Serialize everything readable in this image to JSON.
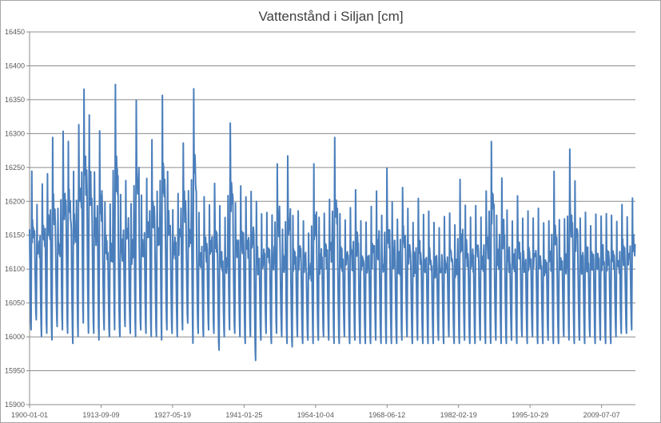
{
  "chart_data": {
    "type": "line",
    "title": "Vattenstånd i Siljan [cm]",
    "xlabel": "",
    "ylabel": "",
    "ylim": [
      15900,
      16450
    ],
    "y_ticks": [
      15900,
      15950,
      16000,
      16050,
      16100,
      16150,
      16200,
      16250,
      16300,
      16350,
      16400,
      16450
    ],
    "x_ticks": [
      "1900-01-01",
      "1913-09-09",
      "1927-05-19",
      "1941-01-25",
      "1954-10-04",
      "1968-06-12",
      "1982-02-19",
      "1995-10-29",
      "2009-07-07"
    ],
    "xlim_years": [
      1900,
      2016
    ],
    "grid": "horizontal",
    "series": [
      {
        "name": "Vattenstånd i Siljan",
        "color": "#4a7ebb",
        "annual_peaks": [
          16250,
          16200,
          16240,
          16255,
          16305,
          16200,
          16320,
          16305,
          16260,
          16325,
          16380,
          16345,
          16255,
          16315,
          16210,
          16200,
          16390,
          16215,
          16245,
          16200,
          16360,
          16220,
          16245,
          16300,
          16225,
          16375,
          16255,
          16200,
          16225,
          16300,
          16220,
          16380,
          16195,
          16215,
          16200,
          16235,
          16200,
          16180,
          16330,
          16210,
          16230,
          16220,
          16225,
          16205,
          16190,
          16195,
          16190,
          16270,
          16170,
          16280,
          16185,
          16190,
          16175,
          16155,
          16270,
          16185,
          16190,
          16210,
          16305,
          16195,
          16185,
          16200,
          16230,
          16175,
          16180,
          16200,
          16220,
          16185,
          16255,
          16205,
          16180,
          16235,
          16200,
          16175,
          16215,
          16185,
          16195,
          16175,
          16170,
          16185,
          16190,
          16175,
          16240,
          16200,
          16185,
          16200,
          16180,
          16225,
          16305,
          16185,
          16250,
          16195,
          16175,
          16215,
          16180,
          16190,
          16185,
          16200,
          16175,
          16180,
          16250,
          16180,
          16180,
          16290,
          16240,
          16180,
          16195,
          16175,
          16190,
          16190,
          16185,
          16190,
          16175,
          16200,
          16180,
          16210
        ],
        "annual_troughs": [
          16010,
          16025,
          16000,
          16005,
          15995,
          16015,
          16010,
          16005,
          15990,
          16000,
          16020,
          16005,
          16005,
          15995,
          16010,
          16000,
          16010,
          16000,
          16015,
          16005,
          16000,
          16010,
          16005,
          16000,
          16000,
          15995,
          16010,
          16005,
          16000,
          16010,
          16020,
          15990,
          16005,
          16000,
          16010,
          16005,
          15980,
          16000,
          16010,
          16005,
          16000,
          15990,
          16000,
          15965,
          15995,
          16005,
          15990,
          16005,
          16000,
          15990,
          15985,
          16000,
          15990,
          15995,
          15990,
          15995,
          16000,
          15995,
          15990,
          15990,
          16000,
          15990,
          15995,
          15990,
          15990,
          15990,
          15995,
          15990,
          15990,
          15990,
          15990,
          15995,
          16000,
          15990,
          15995,
          15990,
          15990,
          15990,
          15995,
          15990,
          16000,
          15990,
          15990,
          15995,
          15990,
          15990,
          15995,
          15990,
          15990,
          15995,
          15990,
          15990,
          15995,
          15990,
          16000,
          15990,
          16000,
          15990,
          15990,
          15995,
          15990,
          15990,
          16000,
          15995,
          15990,
          15995,
          15990,
          16000,
          15990,
          15995,
          15990,
          15990,
          16000,
          16005,
          16005,
          16010
        ]
      }
    ]
  }
}
